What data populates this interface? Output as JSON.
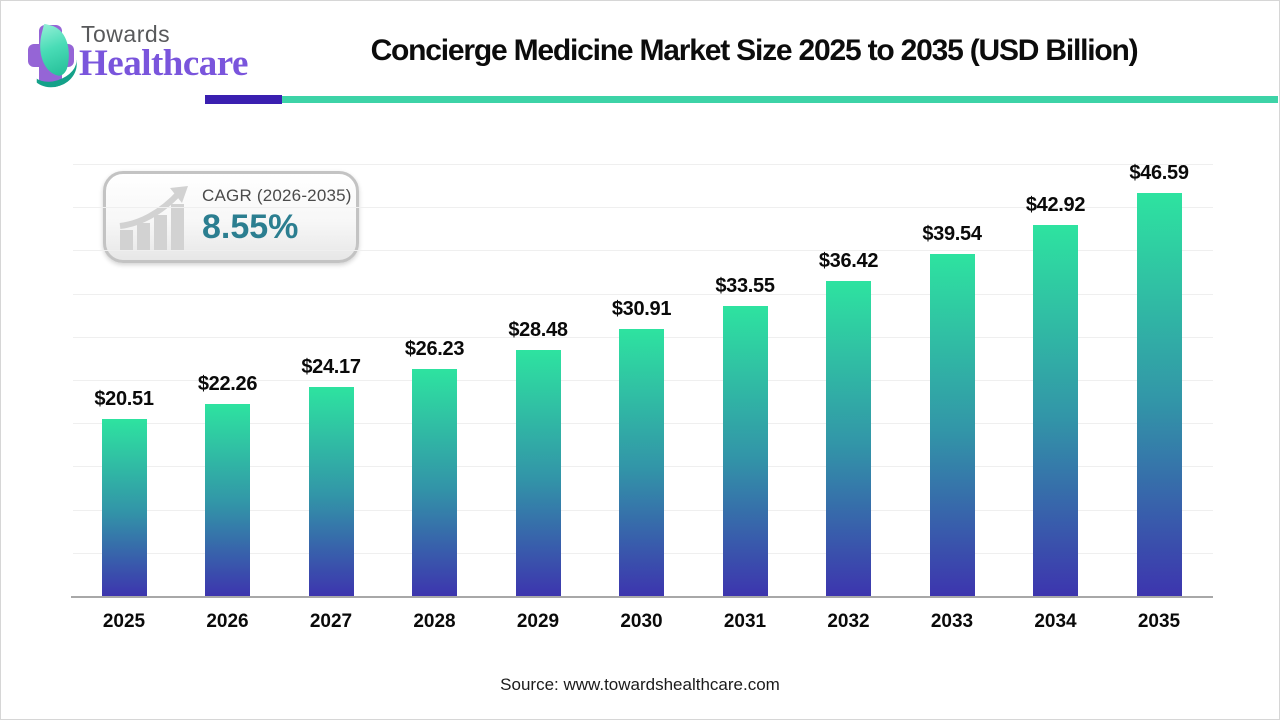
{
  "brand": {
    "towards": "Towards",
    "healthcare": "Healthcare"
  },
  "header": {
    "title": "Concierge Medicine Market Size 2025 to 2035 (USD Billion)"
  },
  "cagr_badge": {
    "label": "CAGR (2026-2035)",
    "value": "8.55%",
    "icon": "bar-chart-up-arrow-icon"
  },
  "source_note": "Source: www.towardshealthcare.com",
  "colors": {
    "accent_teal": "#3dd3a7",
    "accent_purple": "#3a1fb0",
    "bar_gradient_top": "#2ee3a0",
    "bar_gradient_mid": "#3295a8",
    "bar_gradient_bottom": "#3d35ae",
    "cagr_value_color": "#2b7e90",
    "logo_purple": "#9565d6",
    "logo_teal": "#2cc9a4",
    "axis_line": "#a8a8a8"
  },
  "chart_data": {
    "type": "bar",
    "title": "Concierge Medicine Market Size 2025 to 2035 (USD Billion)",
    "unit": "USD Billion",
    "categories": [
      "2025",
      "2026",
      "2027",
      "2028",
      "2029",
      "2030",
      "2031",
      "2032",
      "2033",
      "2034",
      "2035"
    ],
    "values": [
      20.51,
      22.26,
      24.17,
      26.23,
      28.48,
      30.91,
      33.55,
      36.42,
      39.54,
      42.92,
      46.59
    ],
    "bar_labels": [
      "$20.51",
      "$22.26",
      "$24.17",
      "$26.23",
      "$28.48",
      "$30.91",
      "$33.55",
      "$36.42",
      "$39.54",
      "$42.92",
      "$46.59"
    ],
    "xlabel": "",
    "ylabel": "",
    "ylim": [
      0,
      50
    ],
    "gridline_step": 5,
    "grid": true,
    "legend_position": "none"
  }
}
